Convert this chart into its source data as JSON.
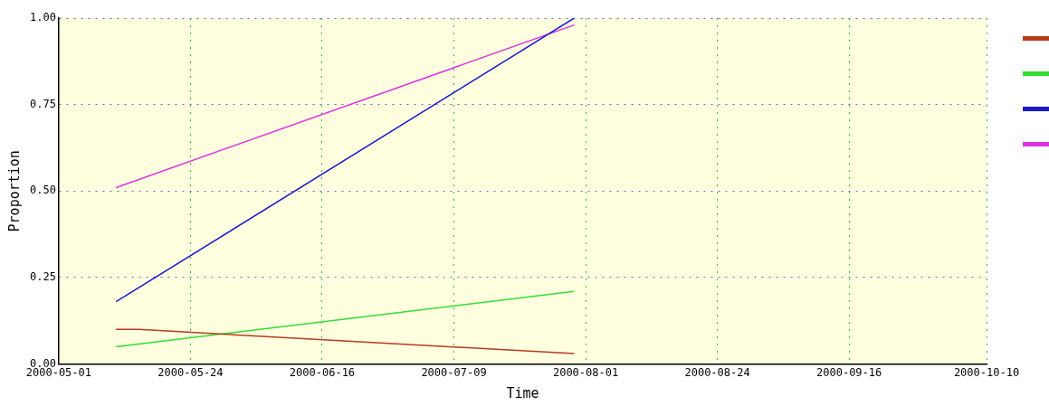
{
  "chart_data": {
    "type": "line",
    "xlabel": "Time",
    "ylabel": "Proportion",
    "xlim": [
      "2000-05-01",
      "2000-10-10"
    ],
    "xticks": [
      "2000-05-01",
      "2000-05-24",
      "2000-06-16",
      "2000-07-09",
      "2000-08-01",
      "2000-08-24",
      "2000-09-16",
      "2000-10-10"
    ],
    "ylim": [
      0,
      1
    ],
    "yticks": [
      {
        "value": 0,
        "label": "0.00"
      },
      {
        "value": 0.25,
        "label": "0.25"
      },
      {
        "value": 0.5,
        "label": "0.50"
      },
      {
        "value": 0.75,
        "label": "0.75"
      },
      {
        "value": 1,
        "label": "1.00"
      }
    ],
    "grid": true,
    "marker": "none",
    "line_style": "solid",
    "series": [
      {
        "color": "#b83a1e",
        "x": [
          "2000-05-11",
          "2000-05-15",
          "2000-07-30"
        ],
        "values": [
          0.1,
          0.1,
          0.03
        ]
      },
      {
        "color": "#33dd33",
        "x": [
          "2000-05-11",
          "2000-07-30"
        ],
        "values": [
          0.05,
          0.21
        ]
      },
      {
        "color": "#1a1acc",
        "x": [
          "2000-05-11",
          "2000-07-30"
        ],
        "values": [
          0.18,
          1.0
        ]
      },
      {
        "color": "#dd33dd",
        "x": [
          "2000-05-11",
          "2000-07-30"
        ],
        "values": [
          0.51,
          0.98
        ]
      }
    ]
  }
}
